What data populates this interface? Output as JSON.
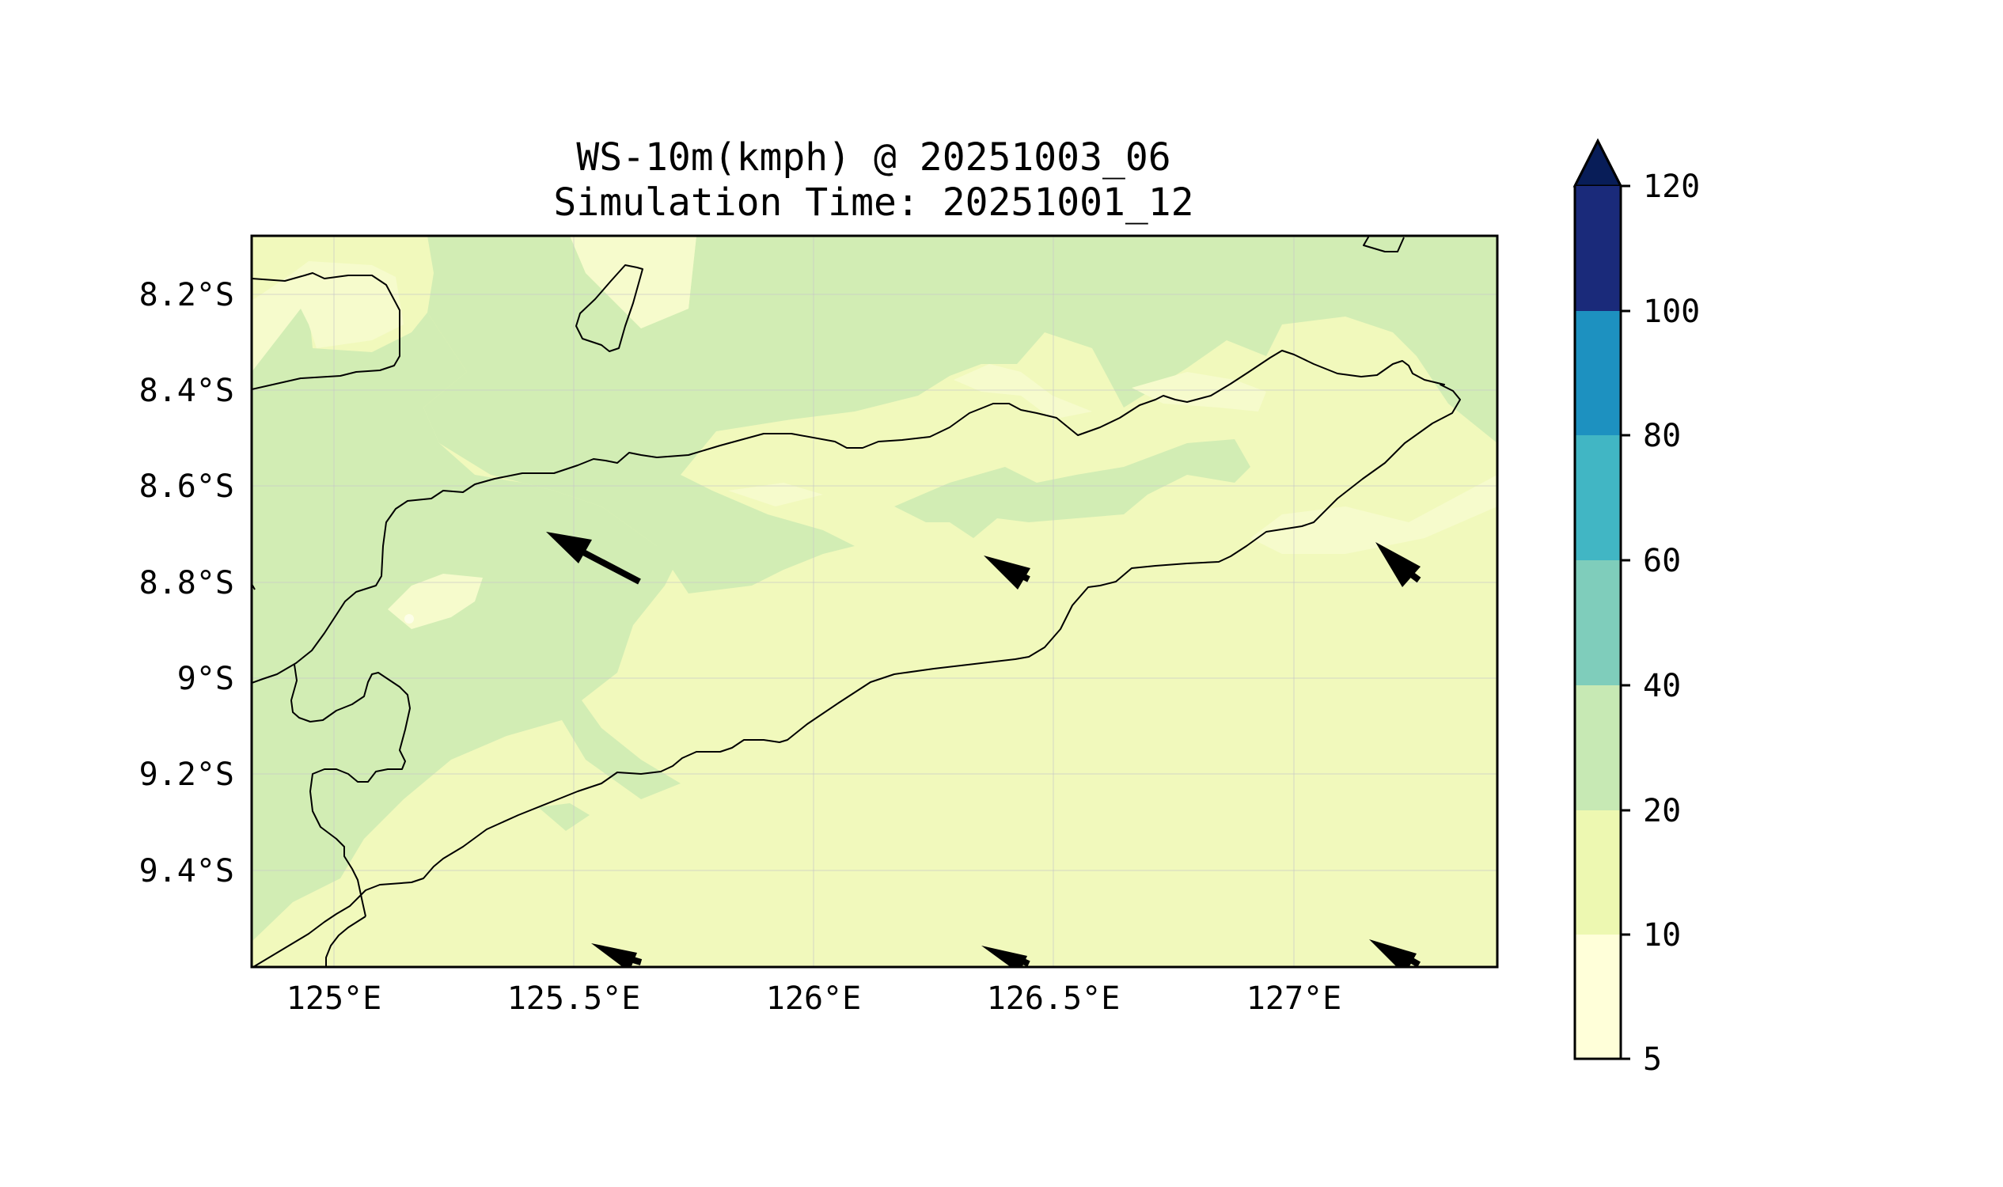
{
  "title": {
    "line1": "WS-10m(kmph) @ 20251003_06",
    "line2": "Simulation Time: 20251001_12"
  },
  "axes": {
    "lat_ticks": [
      "8.2°S",
      "8.4°S",
      "8.6°S",
      "8.8°S",
      "9°S",
      "9.2°S",
      "9.4°S"
    ],
    "lon_ticks": [
      "125°E",
      "125.5°E",
      "126°E",
      "126.5°E",
      "127°E"
    ],
    "lat_range": [
      -9.6,
      -8.07
    ],
    "lon_range": [
      124.82,
      127.42
    ]
  },
  "colorbar": {
    "ticks": [
      "5",
      "10",
      "20",
      "40",
      "60",
      "80",
      "100",
      "120"
    ],
    "colors": [
      "#ffffd9",
      "#edf8b1",
      "#c7e9b4",
      "#7fcdbb",
      "#41b6c4",
      "#1d91c0",
      "#225ea8",
      "#0c2c84"
    ],
    "extend_color": "#081d58",
    "extend": "max"
  },
  "colors": {
    "band_5_10": "#ffffd9",
    "band_10_20": "#f1f9bc",
    "band_20_40": "#d2edb4",
    "coastline": "#000000"
  },
  "wind_vectors_note_icon": "wind-arrow-icon"
}
